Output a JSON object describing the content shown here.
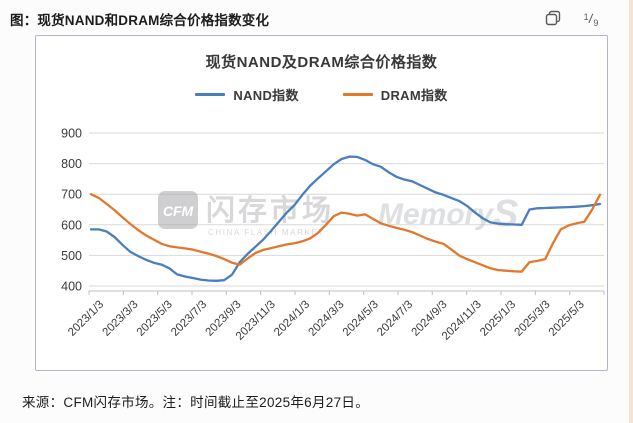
{
  "header": {
    "title": "图：现货NAND和DRAM综合价格指数变化",
    "page_indicator": {
      "numerator": "1",
      "separator": "/",
      "denominator": "9"
    }
  },
  "footer": {
    "text": "来源：CFM闪存市场。注：时间截止至2025年6月27日。"
  },
  "watermark": {
    "logo": "CFM",
    "text_cn": "闪存市场",
    "text_en": "CHINA FLASH MARKET",
    "brand": "MemoryS"
  },
  "colors": {
    "nand_line": "#4a7ebc",
    "dram_line": "#e2772e",
    "grid": "#d9d9d9",
    "axis": "#bfbfbf",
    "tick_text": "#3b3b3b",
    "panel_border": "#b3b3d6",
    "watermark_gray": "#b9b9bf"
  },
  "chart_data": {
    "type": "line",
    "title": "现货NAND及DRAM综合价格指数",
    "xlabel": "",
    "ylabel": "",
    "ylim": [
      400,
      900
    ],
    "y_ticks": [
      400,
      500,
      600,
      700,
      800,
      900
    ],
    "grid": true,
    "legend_position": "top",
    "x_tick_labels": [
      "2023/1/3",
      "2023/3/3",
      "2023/5/3",
      "2023/7/3",
      "2023/9/3",
      "2023/11/3",
      "2024/1/3",
      "2024/3/3",
      "2024/5/3",
      "2024/7/3",
      "2024/9/3",
      "2024/11/3",
      "2025/1/3",
      "2025/3/3",
      "2025/5/3"
    ],
    "x_span": {
      "start": "2023/1/3",
      "end": "2025/6/27",
      "sampling": "biweekly (values estimated from plot)"
    },
    "series": [
      {
        "name": "NAND指数",
        "color": "#4a7ebc",
        "values": [
          585,
          585,
          578,
          560,
          535,
          512,
          498,
          486,
          476,
          470,
          458,
          438,
          431,
          426,
          421,
          418,
          417,
          419,
          437,
          478,
          505,
          528,
          552,
          580,
          610,
          640,
          665,
          698,
          728,
          752,
          775,
          798,
          815,
          823,
          822,
          812,
          798,
          790,
          772,
          757,
          748,
          742,
          730,
          718,
          706,
          698,
          688,
          678,
          662,
          641,
          622,
          608,
          604,
          602,
          601,
          600,
          650,
          654,
          655,
          656,
          657,
          658,
          659,
          661,
          664,
          668
        ]
      },
      {
        "name": "DRAM指数",
        "color": "#e2772e",
        "values": [
          700,
          688,
          668,
          648,
          625,
          603,
          583,
          566,
          552,
          538,
          530,
          526,
          523,
          519,
          512,
          506,
          498,
          488,
          476,
          470,
          490,
          508,
          518,
          524,
          530,
          536,
          540,
          546,
          556,
          574,
          600,
          628,
          640,
          636,
          630,
          634,
          620,
          605,
          597,
          590,
          584,
          576,
          565,
          554,
          545,
          538,
          520,
          500,
          488,
          478,
          468,
          458,
          452,
          450,
          448,
          447,
          478,
          482,
          488,
          540,
          585,
          598,
          605,
          610,
          650,
          698
        ]
      }
    ]
  }
}
